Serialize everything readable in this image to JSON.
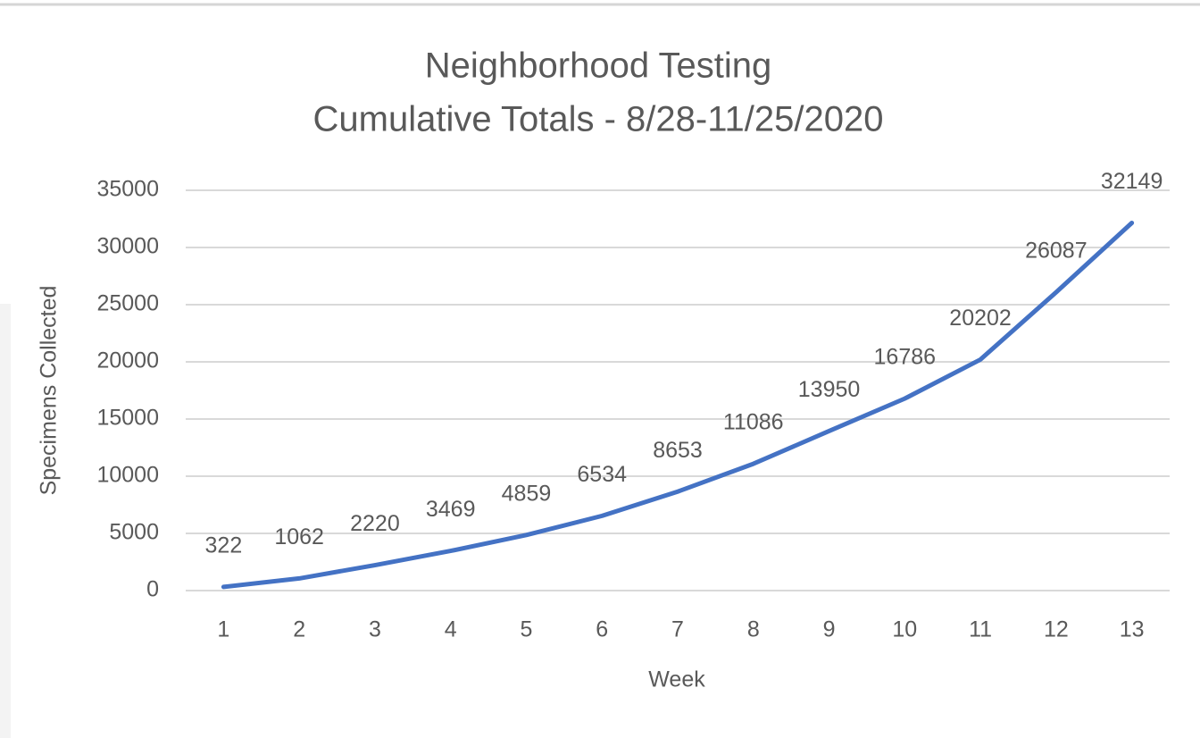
{
  "chart_data": {
    "type": "line",
    "title": "Neighborhood Testing",
    "subtitle": "Cumulative Totals - 8/28-11/25/2020",
    "x_label": "Week",
    "y_label": "Specimens Collected",
    "categories": [
      "1",
      "2",
      "3",
      "4",
      "5",
      "6",
      "7",
      "8",
      "9",
      "10",
      "11",
      "12",
      "13"
    ],
    "values": [
      322,
      1062,
      2220,
      3469,
      4859,
      6534,
      8653,
      11086,
      13950,
      16786,
      20202,
      26087,
      32149
    ],
    "color": "#4472c4",
    "ylim": [
      0,
      35000
    ],
    "yticks": [
      0,
      5000,
      10000,
      15000,
      20000,
      25000,
      30000,
      35000
    ],
    "grid": true
  }
}
